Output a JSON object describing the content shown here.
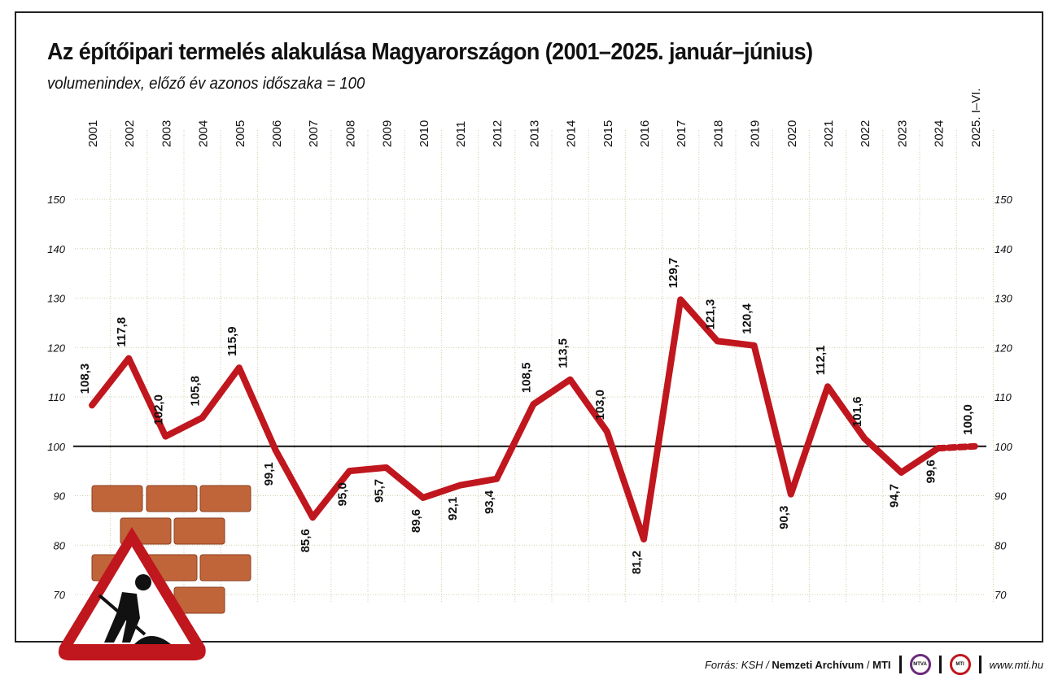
{
  "header": {
    "title": "Az építőipari termelés alakulása Magyarországon (2001–2025. január–június)",
    "subtitle": "volumenindex, előző év azonos időszaka = 100"
  },
  "chart_data": {
    "type": "line",
    "title": "Az építőipari termelés alakulása Magyarországon (2001–2025. január–június)",
    "subtitle": "volumenindex, előző év azonos időszaka = 100",
    "categories": [
      "2001",
      "2002",
      "2003",
      "2004",
      "2005",
      "2006",
      "2007",
      "2008",
      "2009",
      "2010",
      "2011",
      "2012",
      "2013",
      "2014",
      "2015",
      "2016",
      "2017",
      "2018",
      "2019",
      "2020",
      "2021",
      "2022",
      "2023",
      "2024",
      "2025. I–VI."
    ],
    "values": [
      108.3,
      117.8,
      102.0,
      105.8,
      115.9,
      99.1,
      85.6,
      95.0,
      95.7,
      89.6,
      92.1,
      93.4,
      108.5,
      113.5,
      103.0,
      81.2,
      129.7,
      121.3,
      120.4,
      90.3,
      112.1,
      101.6,
      94.7,
      99.6,
      100.0
    ],
    "data_labels": [
      "108,3",
      "117,8",
      "102,0",
      "105,8",
      "115,9",
      "99,1",
      "85,6",
      "95,0",
      "95,7",
      "89,6",
      "92,1",
      "93,4",
      "108,5",
      "113,5",
      "103,0",
      "81,2",
      "129,7",
      "121,3",
      "120,4",
      "90,3",
      "112,1",
      "101,6",
      "94,7",
      "99,6",
      "100,0"
    ],
    "label_position": [
      "above",
      "above",
      "above",
      "above",
      "above",
      "below",
      "below",
      "below",
      "below",
      "below",
      "below",
      "below",
      "above",
      "above",
      "above",
      "below",
      "above",
      "above",
      "above",
      "below",
      "above",
      "above",
      "below",
      "below",
      "above"
    ],
    "ylim": [
      70,
      150
    ],
    "yticks": [
      "70",
      "80",
      "90",
      "100",
      "110",
      "120",
      "130",
      "140",
      "150"
    ],
    "reference_line": 100,
    "line_color": "#c0161e",
    "last_segment_style": "dotted",
    "grid": true,
    "xlabel": "",
    "ylabel": ""
  },
  "footer": {
    "source_prefix": "Forrás: KSH /",
    "source_archive": "Nemzeti Archívum",
    "source_mti": "MTI",
    "logo_mtva": "MTVA",
    "logo_mti": "MTI",
    "url": "www.mti.hu"
  }
}
